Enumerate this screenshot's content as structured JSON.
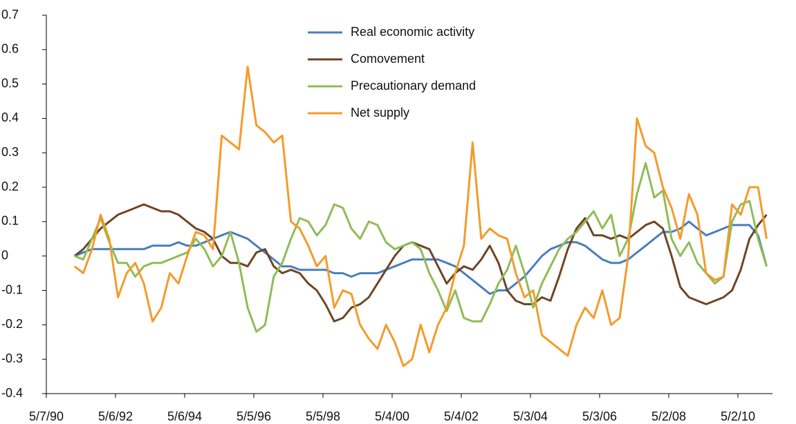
{
  "chart_data": {
    "type": "line",
    "x": [
      "1991-03-01",
      "1991-06-01",
      "1991-09-01",
      "1991-12-01",
      "1992-03-01",
      "1992-06-01",
      "1992-09-01",
      "1992-12-01",
      "1993-03-01",
      "1993-06-01",
      "1993-09-01",
      "1993-12-01",
      "1994-03-01",
      "1994-06-01",
      "1994-09-01",
      "1994-12-01",
      "1995-03-01",
      "1995-06-01",
      "1995-09-01",
      "1995-12-01",
      "1996-03-01",
      "1996-06-01",
      "1996-09-01",
      "1996-12-01",
      "1997-03-01",
      "1997-06-01",
      "1997-09-01",
      "1997-12-01",
      "1998-03-01",
      "1998-06-01",
      "1998-09-01",
      "1998-12-01",
      "1999-03-01",
      "1999-06-01",
      "1999-09-01",
      "1999-12-01",
      "2000-03-01",
      "2000-06-01",
      "2000-09-01",
      "2000-12-01",
      "2001-03-01",
      "2001-06-01",
      "2001-09-01",
      "2001-12-01",
      "2002-03-01",
      "2002-06-01",
      "2002-09-01",
      "2002-12-01",
      "2003-03-01",
      "2003-06-01",
      "2003-09-01",
      "2003-12-01",
      "2004-03-01",
      "2004-06-01",
      "2004-09-01",
      "2004-12-01",
      "2005-03-01",
      "2005-06-01",
      "2005-09-01",
      "2005-12-01",
      "2006-03-01",
      "2006-06-01",
      "2006-09-01",
      "2006-12-01",
      "2007-03-01",
      "2007-06-01",
      "2007-09-01",
      "2007-12-01",
      "2008-03-01",
      "2008-06-01",
      "2008-09-01",
      "2008-12-01",
      "2009-03-01",
      "2009-06-01",
      "2009-09-01",
      "2009-12-01",
      "2010-03-01",
      "2010-06-01",
      "2010-09-01",
      "2010-12-01",
      "2011-03-01"
    ],
    "series": [
      {
        "name": "Real economic activity",
        "color": "#4a7ebb",
        "values": [
          0.0,
          0.01,
          0.02,
          0.02,
          0.02,
          0.02,
          0.02,
          0.02,
          0.02,
          0.03,
          0.03,
          0.03,
          0.04,
          0.03,
          0.03,
          0.04,
          0.05,
          0.06,
          0.07,
          0.06,
          0.05,
          0.03,
          0.01,
          -0.01,
          -0.03,
          -0.03,
          -0.04,
          -0.04,
          -0.04,
          -0.04,
          -0.05,
          -0.05,
          -0.06,
          -0.05,
          -0.05,
          -0.05,
          -0.04,
          -0.03,
          -0.02,
          -0.01,
          -0.01,
          -0.01,
          -0.01,
          -0.02,
          -0.03,
          -0.05,
          -0.07,
          -0.09,
          -0.11,
          -0.1,
          -0.1,
          -0.08,
          -0.06,
          -0.03,
          0.0,
          0.02,
          0.03,
          0.04,
          0.04,
          0.03,
          0.01,
          -0.01,
          -0.02,
          -0.02,
          -0.01,
          0.01,
          0.03,
          0.05,
          0.07,
          0.07,
          0.08,
          0.1,
          0.08,
          0.06,
          0.07,
          0.08,
          0.09,
          0.09,
          0.09,
          0.06,
          -0.03
        ]
      },
      {
        "name": "Comovement",
        "color": "#6e4524",
        "values": [
          0.0,
          0.02,
          0.05,
          0.08,
          0.1,
          0.12,
          0.13,
          0.14,
          0.15,
          0.14,
          0.13,
          0.13,
          0.12,
          0.1,
          0.08,
          0.07,
          0.05,
          0.0,
          -0.02,
          -0.02,
          -0.03,
          0.01,
          0.02,
          -0.03,
          -0.05,
          -0.04,
          -0.05,
          -0.08,
          -0.1,
          -0.14,
          -0.19,
          -0.18,
          -0.15,
          -0.14,
          -0.12,
          -0.08,
          -0.04,
          0.0,
          0.03,
          0.04,
          0.03,
          0.02,
          -0.03,
          -0.08,
          -0.05,
          -0.03,
          -0.04,
          -0.01,
          0.03,
          -0.02,
          -0.1,
          -0.13,
          -0.14,
          -0.14,
          -0.12,
          -0.13,
          -0.06,
          0.02,
          0.08,
          0.11,
          0.06,
          0.06,
          0.05,
          0.06,
          0.05,
          0.07,
          0.09,
          0.1,
          0.08,
          0.0,
          -0.09,
          -0.12,
          -0.13,
          -0.14,
          -0.13,
          -0.12,
          -0.1,
          -0.04,
          0.05,
          0.09,
          0.12
        ]
      },
      {
        "name": "Precautionary demand",
        "color": "#8fbc56",
        "values": [
          0.0,
          -0.01,
          0.05,
          0.11,
          0.04,
          -0.02,
          -0.02,
          -0.06,
          -0.03,
          -0.02,
          -0.02,
          -0.01,
          0.0,
          0.01,
          0.05,
          0.02,
          -0.03,
          0.0,
          0.07,
          -0.02,
          -0.15,
          -0.22,
          -0.2,
          -0.06,
          -0.02,
          0.05,
          0.11,
          0.1,
          0.06,
          0.09,
          0.15,
          0.14,
          0.08,
          0.05,
          0.1,
          0.09,
          0.04,
          0.02,
          0.03,
          0.04,
          0.02,
          -0.05,
          -0.1,
          -0.16,
          -0.1,
          -0.18,
          -0.19,
          -0.19,
          -0.14,
          -0.08,
          -0.04,
          0.03,
          -0.05,
          -0.15,
          -0.08,
          -0.03,
          0.02,
          0.05,
          0.07,
          0.1,
          0.13,
          0.08,
          0.12,
          0.0,
          0.05,
          0.18,
          0.27,
          0.17,
          0.19,
          0.05,
          0.0,
          0.04,
          -0.02,
          -0.05,
          -0.08,
          -0.06,
          0.1,
          0.15,
          0.16,
          0.05,
          -0.03
        ]
      },
      {
        "name": "Net supply",
        "color": "#f59a2a",
        "values": [
          -0.03,
          -0.05,
          0.02,
          0.12,
          0.05,
          -0.12,
          -0.05,
          -0.02,
          -0.08,
          -0.19,
          -0.15,
          -0.05,
          -0.08,
          0.0,
          0.07,
          0.06,
          0.02,
          0.35,
          0.33,
          0.31,
          0.55,
          0.38,
          0.36,
          0.33,
          0.35,
          0.1,
          0.08,
          0.03,
          -0.03,
          0.0,
          -0.15,
          -0.1,
          -0.11,
          -0.2,
          -0.24,
          -0.27,
          -0.2,
          -0.25,
          -0.32,
          -0.3,
          -0.2,
          -0.28,
          -0.2,
          -0.15,
          -0.05,
          0.03,
          0.33,
          0.05,
          0.08,
          0.06,
          0.05,
          -0.05,
          -0.12,
          -0.1,
          -0.23,
          -0.25,
          -0.27,
          -0.29,
          -0.2,
          -0.15,
          -0.18,
          -0.1,
          -0.2,
          -0.18,
          0.0,
          0.4,
          0.32,
          0.3,
          0.2,
          0.14,
          0.05,
          0.18,
          0.12,
          -0.05,
          -0.07,
          -0.06,
          0.15,
          0.12,
          0.2,
          0.2,
          0.05
        ]
      }
    ],
    "xlim": [
      "1990-05-07",
      "2011-05-02"
    ],
    "xticks": [
      {
        "value": "1990-05-07",
        "label": "5/7/90"
      },
      {
        "value": "1992-05-06",
        "label": "5/6/92"
      },
      {
        "value": "1994-05-06",
        "label": "5/6/94"
      },
      {
        "value": "1996-05-05",
        "label": "5/5/96"
      },
      {
        "value": "1998-05-05",
        "label": "5/5/98"
      },
      {
        "value": "2000-05-04",
        "label": "5/4/00"
      },
      {
        "value": "2002-05-04",
        "label": "5/4/02"
      },
      {
        "value": "2004-05-03",
        "label": "5/3/04"
      },
      {
        "value": "2006-05-03",
        "label": "5/3/06"
      },
      {
        "value": "2008-05-02",
        "label": "5/2/08"
      },
      {
        "value": "2010-05-02",
        "label": "5/2/10"
      }
    ],
    "ylim": [
      -0.4,
      0.7
    ],
    "yticks": [
      -0.4,
      -0.3,
      -0.2,
      -0.1,
      0,
      0.1,
      0.2,
      0.3,
      0.4,
      0.5,
      0.6,
      0.7
    ],
    "grid": false,
    "legend": "top"
  }
}
